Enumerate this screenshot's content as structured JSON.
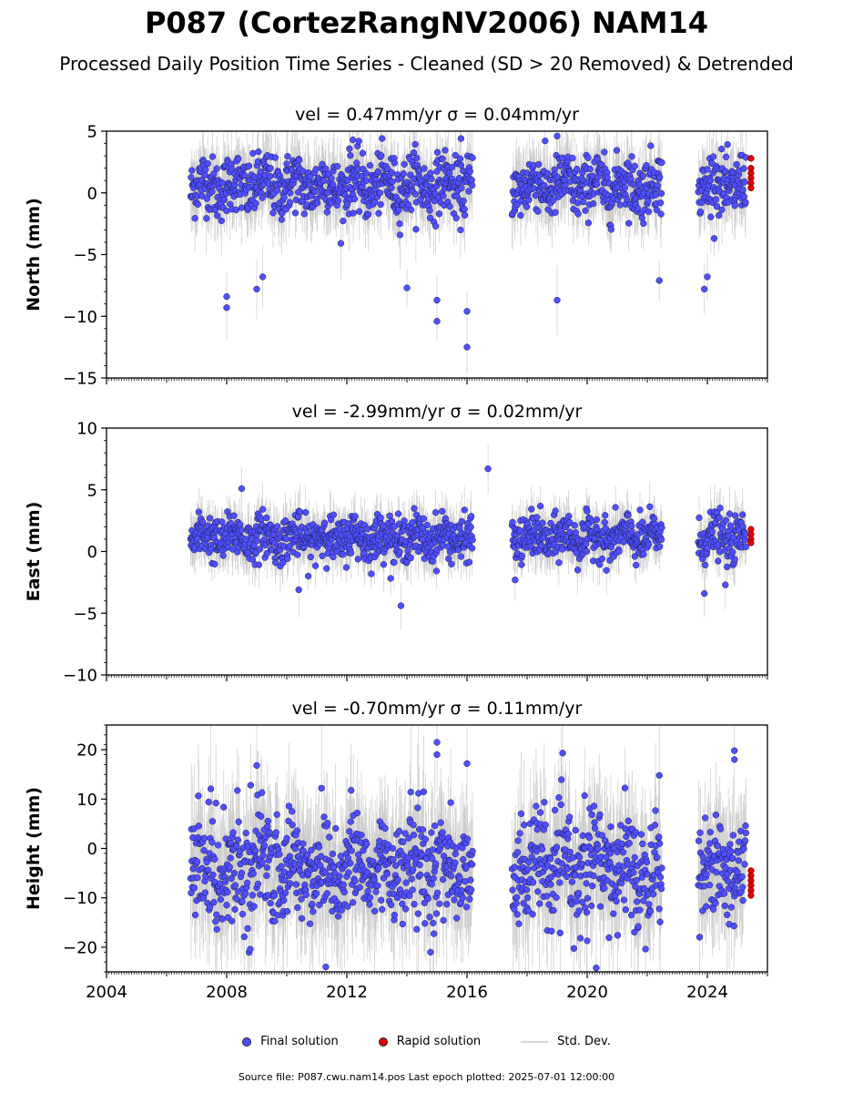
{
  "title": "P087 (CortezRangNV2006) NAM14",
  "subtitle": "Processed Daily Position Time Series - Cleaned (SD > 20 Removed) & Detrended",
  "legend": {
    "final": "Final solution",
    "rapid": "Rapid solution",
    "std": "Std. Dev."
  },
  "footer": "Source file: P087.cwu.nam14.pos  Last epoch plotted: 2025-07-01 12:00:00",
  "colors": {
    "final": "#4f4fff",
    "rapid": "#e00000",
    "std": "#9a9a9a"
  },
  "chart_data": [
    {
      "type": "scatter",
      "title": "vel = 0.47mm/yr   σ = 0.04mm/yr",
      "ylabel": "North (mm)",
      "xlim": [
        2004,
        2026
      ],
      "ylim": [
        -15,
        5
      ],
      "yticks": [
        -15,
        -10,
        -5,
        0,
        5
      ],
      "xticks": [
        2004,
        2008,
        2012,
        2016,
        2020,
        2024
      ],
      "data_span": [
        [
          2006.8,
          2016.2
        ],
        [
          2017.5,
          2022.5
        ],
        [
          2023.7,
          2025.3
        ]
      ],
      "center": 0.6,
      "spread": 1.2,
      "outliers": [
        [
          2008.0,
          -8.4
        ],
        [
          2008.0,
          -9.3
        ],
        [
          2009.0,
          -7.8
        ],
        [
          2009.2,
          -6.8
        ],
        [
          2014.0,
          -7.7
        ],
        [
          2015.0,
          -8.7
        ],
        [
          2015.0,
          -10.4
        ],
        [
          2016.0,
          -9.6
        ],
        [
          2016.0,
          -12.5
        ],
        [
          2012.2,
          4.3
        ],
        [
          2015.8,
          4.4
        ],
        [
          2019.0,
          4.6
        ],
        [
          2019.0,
          -8.7
        ],
        [
          2022.4,
          -7.1
        ],
        [
          2023.9,
          -7.8
        ],
        [
          2024.0,
          -6.8
        ]
      ],
      "rapid": {
        "x": 2025.45,
        "values": [
          2.8,
          2.0,
          1.6,
          1.2,
          0.8,
          0.4
        ]
      }
    },
    {
      "type": "scatter",
      "title": "vel = -2.99mm/yr   σ = 0.02mm/yr",
      "ylabel": "East (mm)",
      "xlim": [
        2004,
        2026
      ],
      "ylim": [
        -10,
        10
      ],
      "yticks": [
        -10,
        -5,
        0,
        5,
        10
      ],
      "xticks": [
        2004,
        2008,
        2012,
        2016,
        2020,
        2024
      ],
      "data_span": [
        [
          2006.8,
          2016.2
        ],
        [
          2017.5,
          2022.5
        ],
        [
          2023.7,
          2025.3
        ]
      ],
      "center": 1.1,
      "spread": 0.9,
      "outliers": [
        [
          2008.5,
          5.1
        ],
        [
          2016.7,
          6.7
        ],
        [
          2013.8,
          -4.4
        ],
        [
          2010.4,
          -3.1
        ],
        [
          2023.9,
          -3.4
        ],
        [
          2017.6,
          -2.3
        ],
        [
          2024.6,
          -2.7
        ]
      ],
      "rapid": {
        "x": 2025.45,
        "values": [
          1.8,
          1.4,
          1.0,
          0.7
        ]
      }
    },
    {
      "type": "scatter",
      "title": "vel = -0.70mm/yr   σ = 0.11mm/yr",
      "ylabel": "Height (mm)",
      "xlim": [
        2004,
        2026
      ],
      "ylim": [
        -25,
        25
      ],
      "yticks": [
        -20,
        -10,
        0,
        10,
        20
      ],
      "xticks": [
        2004,
        2008,
        2012,
        2016,
        2020,
        2024
      ],
      "data_span": [
        [
          2006.8,
          2016.2
        ],
        [
          2017.5,
          2022.5
        ],
        [
          2023.7,
          2025.3
        ]
      ],
      "center": -4.0,
      "spread": 5.5,
      "outliers": [
        [
          2015.0,
          21.5
        ],
        [
          2015.0,
          19.0
        ],
        [
          2024.9,
          19.8
        ],
        [
          2024.9,
          18.0
        ],
        [
          2016.0,
          17.2
        ],
        [
          2022.4,
          14.8
        ],
        [
          2011.3,
          -24.0
        ],
        [
          2020.3,
          -24.2
        ],
        [
          2009.0,
          16.8
        ],
        [
          2008.8,
          12.8
        ]
      ],
      "rapid": {
        "x": 2025.45,
        "values": [
          -4.5,
          -5.5,
          -6.5,
          -7.5,
          -8.5,
          -9.5
        ]
      }
    }
  ]
}
